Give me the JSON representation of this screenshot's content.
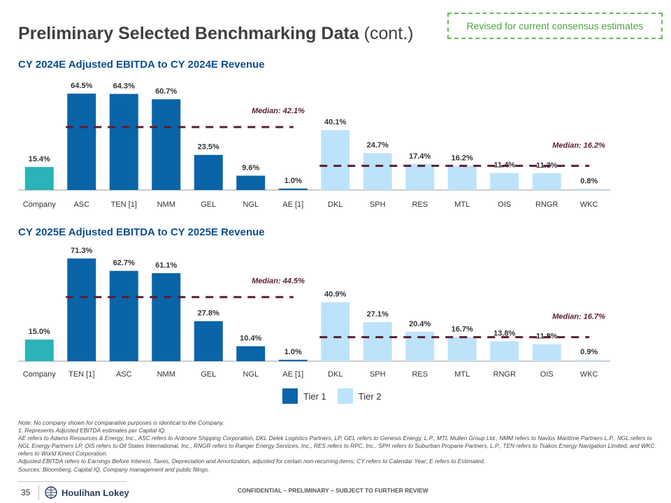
{
  "header": {
    "title_main": "Preliminary Selected Benchmarking Data",
    "title_sub": "(cont.)",
    "revised_note": "Revised for current consensus estimates"
  },
  "chart_data": [
    {
      "type": "bar",
      "title": "CY 2024E Adjusted EBITDA to CY 2024E Revenue",
      "categories": [
        "Company",
        "ASC",
        "TEN [1]",
        "NMM",
        "GEL",
        "NGL",
        "AE [1]",
        "DKL",
        "SPH",
        "RES",
        "MTL",
        "OIS",
        "RNGR",
        "WKC"
      ],
      "values": [
        15.4,
        64.5,
        64.3,
        60.7,
        23.5,
        9.6,
        1.0,
        40.1,
        24.7,
        17.4,
        16.2,
        11.4,
        11.3,
        0.8
      ],
      "labels": [
        "15.4%",
        "64.5%",
        "64.3%",
        "60.7%",
        "23.5%",
        "9.6%",
        "1.0%",
        "40.1%",
        "24.7%",
        "17.4%",
        "16.2%",
        "11.4%",
        "11.3%",
        "0.8%"
      ],
      "groups": [
        "company",
        "tier1",
        "tier1",
        "tier1",
        "tier1",
        "tier1",
        "tier1",
        "tier2",
        "tier2",
        "tier2",
        "tier2",
        "tier2",
        "tier2",
        "tier2"
      ],
      "medians": [
        {
          "label": "Median: 42.1%",
          "value": 42.1,
          "from_index": 1,
          "to_index": 6
        },
        {
          "label": "Median: 16.2%",
          "value": 16.2,
          "from_index": 7,
          "to_index": 13
        }
      ],
      "ylim": [
        0,
        70
      ]
    },
    {
      "type": "bar",
      "title": "CY 2025E Adjusted EBITDA to CY 2025E Revenue",
      "categories": [
        "Company",
        "TEN [1]",
        "ASC",
        "NMM",
        "GEL",
        "NGL",
        "AE [1]",
        "DKL",
        "SPH",
        "RES",
        "MTL",
        "RNGR",
        "OIS",
        "WKC"
      ],
      "values": [
        15.0,
        71.3,
        62.7,
        61.1,
        27.8,
        10.4,
        1.0,
        40.9,
        27.1,
        20.4,
        16.7,
        13.8,
        11.8,
        0.9
      ],
      "labels": [
        "15.0%",
        "71.3%",
        "62.7%",
        "61.1%",
        "27.8%",
        "10.4%",
        "1.0%",
        "40.9%",
        "27.1%",
        "20.4%",
        "16.7%",
        "13.8%",
        "11.8%",
        "0.9%"
      ],
      "groups": [
        "company",
        "tier1",
        "tier1",
        "tier1",
        "tier1",
        "tier1",
        "tier1",
        "tier2",
        "tier2",
        "tier2",
        "tier2",
        "tier2",
        "tier2",
        "tier2"
      ],
      "medians": [
        {
          "label": "Median: 44.5%",
          "value": 44.5,
          "from_index": 1,
          "to_index": 6
        },
        {
          "label": "Median: 16.7%",
          "value": 16.7,
          "from_index": 7,
          "to_index": 13
        }
      ],
      "ylim": [
        0,
        72
      ]
    }
  ],
  "colors": {
    "company": "#2ab3b8",
    "tier1": "#0a64a8",
    "tier2": "#bde3fb",
    "median": "#5a1e33",
    "title_blue": "#0b4f8f",
    "revised_green": "#5fbf4f"
  },
  "legend": [
    {
      "label": "Tier 1",
      "color": "#0a64a8"
    },
    {
      "label": "Tier 2",
      "color": "#bde3fb"
    }
  ],
  "notes": [
    "Note: No company shown for comparative purposes is identical to the Company.",
    "1. Represents Adjusted EBITDA estimates per Capital IQ.",
    "AE refers to Adams Resources & Energy, Inc., ASC refers to Ardmore Shipping Corporation, DKL Delek Logistics Partners, LP, GEL refers to Genesis Energy, L.P., MTL Mullen Group Ltd., NMM refers to Navios Maritime Partners L.P., NGL refers to NGL Energy Partners LP, OIS refers to Oil States International, Inc., RNGR refers to Ranger Energy Services, Inc., RES refers to RPC, Inc., SPH refers to Suburban Propane Partners, L.P., TEN refers to Tsakos Energy Navigation Limited, and WKC refers to World Kinect Corporation.",
    "Adjusted EBITDA refers to Earnings Before Interest, Taxes, Depreciation and Amortization, adjusted for certain non-recurring items; CY refers to Calendar Year; E refers to Estimated.",
    "Sources: Bloomberg, Capital IQ, Company management and public filings."
  ],
  "footer": {
    "page_number": "35",
    "logo_text": "Houlihan Lokey",
    "confidential": "CONFIDENTIAL – PRELIMINARY – SUBJECT TO FURTHER REVIEW"
  }
}
